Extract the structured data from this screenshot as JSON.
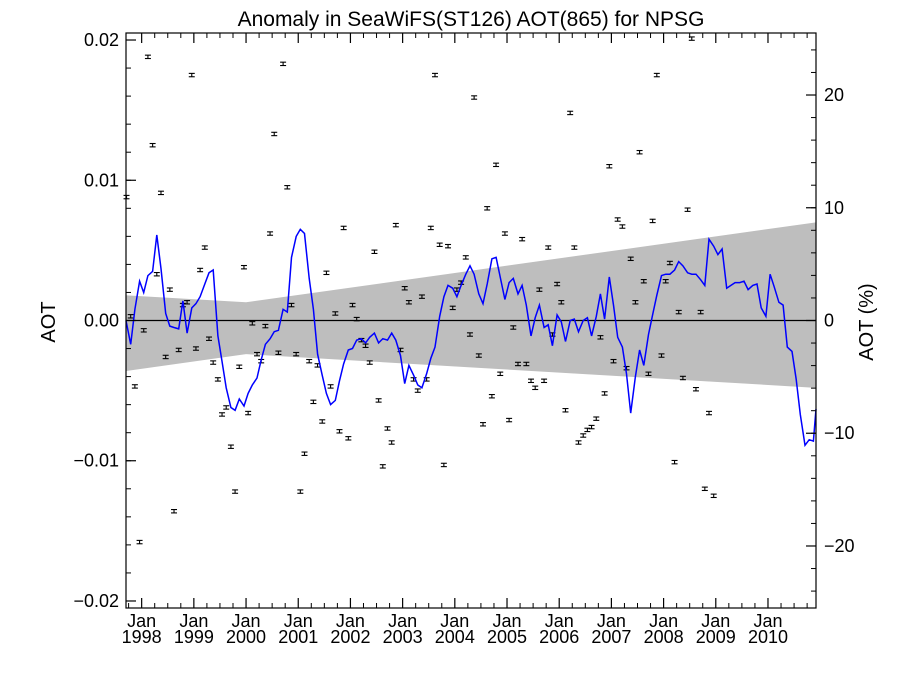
{
  "chart_data": {
    "type": "line",
    "title": "Anomaly in SeaWiFS(ST126) AOT(865) for NPSG",
    "ylabel_left": "AOT",
    "ylabel_right": "AOT (%)",
    "xlim": [
      1997.7,
      2010.92
    ],
    "ylim": [
      -0.0205,
      0.0205
    ],
    "ylim_right": [
      -25.5,
      25.5
    ],
    "x_ticks": [
      {
        "value": 1998,
        "line1": "Jan",
        "line2": "1998"
      },
      {
        "value": 1999,
        "line1": "Jan",
        "line2": "1999"
      },
      {
        "value": 2000,
        "line1": "Jan",
        "line2": "2000"
      },
      {
        "value": 2001,
        "line1": "Jan",
        "line2": "2001"
      },
      {
        "value": 2002,
        "line1": "Jan",
        "line2": "2002"
      },
      {
        "value": 2003,
        "line1": "Jan",
        "line2": "2003"
      },
      {
        "value": 2004,
        "line1": "Jan",
        "line2": "2004"
      },
      {
        "value": 2005,
        "line1": "Jan",
        "line2": "2005"
      },
      {
        "value": 2006,
        "line1": "Jan",
        "line2": "2006"
      },
      {
        "value": 2007,
        "line1": "Jan",
        "line2": "2007"
      },
      {
        "value": 2008,
        "line1": "Jan",
        "line2": "2008"
      },
      {
        "value": 2009,
        "line1": "Jan",
        "line2": "2009"
      },
      {
        "value": 2010,
        "line1": "Jan",
        "line2": "2010"
      }
    ],
    "y_ticks_left": [
      {
        "value": 0.02,
        "label": "0.02"
      },
      {
        "value": 0.01,
        "label": "0.01"
      },
      {
        "value": 0.0,
        "label": "0.00"
      },
      {
        "value": -0.01,
        "label": "−0.01"
      },
      {
        "value": -0.02,
        "label": "−0.02"
      }
    ],
    "y_ticks_right": [
      {
        "value": 20,
        "label": "20"
      },
      {
        "value": 10,
        "label": "10"
      },
      {
        "value": 0,
        "label": "0"
      },
      {
        "value": -10,
        "label": "−10"
      },
      {
        "value": -20,
        "label": "−20"
      }
    ],
    "zero_line": 0,
    "confidence_band": {
      "upper": [
        [
          1997.7,
          0.0018
        ],
        [
          2000.0,
          0.0013
        ],
        [
          2010.92,
          0.007
        ]
      ],
      "lower": [
        [
          1997.7,
          -0.0036
        ],
        [
          2000.0,
          -0.0024
        ],
        [
          2010.92,
          -0.0048
        ]
      ],
      "color": "#bebebe"
    },
    "smoothed_line": {
      "color": "#0000ff",
      "points": [
        [
          1997.7,
          0.0
        ],
        [
          1997.79,
          -0.0017
        ],
        [
          1997.87,
          0.0008
        ],
        [
          1997.96,
          0.0028
        ],
        [
          1998.04,
          0.002
        ],
        [
          1998.12,
          0.0032
        ],
        [
          1998.21,
          0.0035
        ],
        [
          1998.29,
          0.0061
        ],
        [
          1998.37,
          0.0037
        ],
        [
          1998.46,
          0.0005
        ],
        [
          1998.54,
          -0.0004
        ],
        [
          1998.62,
          -0.0005
        ],
        [
          1998.71,
          -0.0006
        ],
        [
          1998.79,
          0.0014
        ],
        [
          1998.87,
          -0.0009
        ],
        [
          1998.96,
          0.0009
        ],
        [
          1999.04,
          0.0012
        ],
        [
          1999.12,
          0.0017
        ],
        [
          1999.21,
          0.0026
        ],
        [
          1999.29,
          0.0034
        ],
        [
          1999.37,
          0.0036
        ],
        [
          1999.46,
          -0.0011
        ],
        [
          1999.54,
          -0.0029
        ],
        [
          1999.62,
          -0.0048
        ],
        [
          1999.71,
          -0.0062
        ],
        [
          1999.79,
          -0.0064
        ],
        [
          1999.87,
          -0.0056
        ],
        [
          1999.96,
          -0.0061
        ],
        [
          2000.04,
          -0.0052
        ],
        [
          2000.12,
          -0.0046
        ],
        [
          2000.21,
          -0.0041
        ],
        [
          2000.29,
          -0.0028
        ],
        [
          2000.37,
          -0.0017
        ],
        [
          2000.46,
          -0.0013
        ],
        [
          2000.54,
          -0.0008
        ],
        [
          2000.62,
          -0.0007
        ],
        [
          2000.71,
          0.0008
        ],
        [
          2000.79,
          0.0006
        ],
        [
          2000.87,
          0.0045
        ],
        [
          2000.96,
          0.006
        ],
        [
          2001.04,
          0.0065
        ],
        [
          2001.12,
          0.0062
        ],
        [
          2001.21,
          0.003
        ],
        [
          2001.29,
          0.0008
        ],
        [
          2001.37,
          -0.0024
        ],
        [
          2001.46,
          -0.0039
        ],
        [
          2001.54,
          -0.0052
        ],
        [
          2001.62,
          -0.006
        ],
        [
          2001.71,
          -0.0057
        ],
        [
          2001.79,
          -0.0043
        ],
        [
          2001.87,
          -0.0031
        ],
        [
          2001.96,
          -0.0021
        ],
        [
          2002.04,
          -0.002
        ],
        [
          2002.12,
          -0.0014
        ],
        [
          2002.21,
          -0.0013
        ],
        [
          2002.29,
          -0.0016
        ],
        [
          2002.37,
          -0.0012
        ],
        [
          2002.46,
          -0.0009
        ],
        [
          2002.54,
          -0.0016
        ],
        [
          2002.62,
          -0.0013
        ],
        [
          2002.71,
          -0.0014
        ],
        [
          2002.79,
          -0.0009
        ],
        [
          2002.87,
          -0.0014
        ],
        [
          2002.96,
          -0.0025
        ],
        [
          2003.04,
          -0.0045
        ],
        [
          2003.12,
          -0.0032
        ],
        [
          2003.21,
          -0.0039
        ],
        [
          2003.29,
          -0.0046
        ],
        [
          2003.37,
          -0.0048
        ],
        [
          2003.46,
          -0.0038
        ],
        [
          2003.54,
          -0.0027
        ],
        [
          2003.62,
          -0.0019
        ],
        [
          2003.71,
          0.0003
        ],
        [
          2003.79,
          0.0017
        ],
        [
          2003.87,
          0.0025
        ],
        [
          2003.96,
          0.0023
        ],
        [
          2004.04,
          0.0017
        ],
        [
          2004.12,
          0.0025
        ],
        [
          2004.21,
          0.0033
        ],
        [
          2004.29,
          0.0039
        ],
        [
          2004.37,
          0.0033
        ],
        [
          2004.46,
          0.0019
        ],
        [
          2004.54,
          0.0012
        ],
        [
          2004.62,
          0.0026
        ],
        [
          2004.71,
          0.0044
        ],
        [
          2004.79,
          0.0045
        ],
        [
          2004.87,
          0.0031
        ],
        [
          2004.96,
          0.0015
        ],
        [
          2005.04,
          0.0027
        ],
        [
          2005.12,
          0.003
        ],
        [
          2005.21,
          0.0019
        ],
        [
          2005.29,
          0.0025
        ],
        [
          2005.37,
          0.0011
        ],
        [
          2005.46,
          -0.0011
        ],
        [
          2005.54,
          0.0002
        ],
        [
          2005.62,
          0.0011
        ],
        [
          2005.71,
          -0.0005
        ],
        [
          2005.79,
          -0.0003
        ],
        [
          2005.87,
          -0.0018
        ],
        [
          2005.96,
          0.0004
        ],
        [
          2006.04,
          -0.0001
        ],
        [
          2006.12,
          -0.0015
        ],
        [
          2006.21,
          0.0
        ],
        [
          2006.29,
          0.0001
        ],
        [
          2006.37,
          -0.0008
        ],
        [
          2006.46,
          0.0
        ],
        [
          2006.54,
          0.0002
        ],
        [
          2006.62,
          -0.0011
        ],
        [
          2006.71,
          0.0003
        ],
        [
          2006.79,
          0.0019
        ],
        [
          2006.87,
          0.0001
        ],
        [
          2006.96,
          0.0031
        ],
        [
          2007.04,
          0.0011
        ],
        [
          2007.12,
          -0.0012
        ],
        [
          2007.21,
          -0.0019
        ],
        [
          2007.29,
          -0.0038
        ],
        [
          2007.37,
          -0.0066
        ],
        [
          2007.46,
          -0.004
        ],
        [
          2007.54,
          -0.0021
        ],
        [
          2007.62,
          -0.0032
        ],
        [
          2007.71,
          -0.001
        ],
        [
          2007.79,
          0.0004
        ],
        [
          2007.87,
          0.0018
        ],
        [
          2007.96,
          0.0032
        ],
        [
          2008.04,
          0.0033
        ],
        [
          2008.12,
          0.0033
        ],
        [
          2008.21,
          0.0036
        ],
        [
          2008.29,
          0.0042
        ],
        [
          2008.37,
          0.0039
        ],
        [
          2008.46,
          0.0034
        ],
        [
          2008.54,
          0.0033
        ],
        [
          2008.62,
          0.0033
        ],
        [
          2008.71,
          0.0029
        ],
        [
          2008.79,
          0.0025
        ],
        [
          2008.87,
          0.0058
        ],
        [
          2008.96,
          0.0053
        ],
        [
          2009.04,
          0.0047
        ],
        [
          2009.12,
          0.0051
        ],
        [
          2009.21,
          0.0023
        ],
        [
          2009.29,
          0.0025
        ],
        [
          2009.37,
          0.0027
        ],
        [
          2009.46,
          0.0027
        ],
        [
          2009.54,
          0.0028
        ],
        [
          2009.62,
          0.0022
        ],
        [
          2009.71,
          0.0025
        ],
        [
          2009.79,
          0.0026
        ],
        [
          2009.87,
          0.0009
        ],
        [
          2009.96,
          0.0003
        ],
        [
          2010.04,
          0.0033
        ],
        [
          2010.12,
          0.0024
        ],
        [
          2010.21,
          0.0013
        ],
        [
          2010.29,
          0.0011
        ],
        [
          2010.37,
          -0.0019
        ],
        [
          2010.46,
          -0.0022
        ],
        [
          2010.54,
          -0.0042
        ],
        [
          2010.62,
          -0.0067
        ],
        [
          2010.71,
          -0.0089
        ],
        [
          2010.79,
          -0.0085
        ],
        [
          2010.87,
          -0.0086
        ],
        [
          2010.92,
          -0.0063
        ]
      ]
    },
    "monthly_points": {
      "color": "#000000",
      "error": 0.00012,
      "points": [
        [
          1997.71,
          0.0088
        ],
        [
          1997.79,
          0.0003
        ],
        [
          1997.87,
          -0.0047
        ],
        [
          1997.96,
          -0.0158
        ],
        [
          1998.04,
          -0.0007
        ],
        [
          1998.12,
          0.0188
        ],
        [
          1998.21,
          0.0125
        ],
        [
          1998.29,
          0.0033
        ],
        [
          1998.37,
          0.0091
        ],
        [
          1998.46,
          -0.0026
        ],
        [
          1998.54,
          0.0022
        ],
        [
          1998.62,
          -0.0136
        ],
        [
          1998.71,
          -0.0021
        ],
        [
          1998.79,
          0.0011
        ],
        [
          1998.87,
          0.0013
        ],
        [
          1998.96,
          0.0175
        ],
        [
          1999.04,
          -0.002
        ],
        [
          1999.12,
          0.0036
        ],
        [
          1999.21,
          0.0052
        ],
        [
          1999.29,
          -0.0013
        ],
        [
          1999.37,
          -0.003
        ],
        [
          1999.46,
          -0.0042
        ],
        [
          1999.54,
          -0.0067
        ],
        [
          1999.62,
          -0.0062
        ],
        [
          1999.71,
          -0.009
        ],
        [
          1999.79,
          -0.0122
        ],
        [
          1999.87,
          -0.0033
        ],
        [
          1999.96,
          0.0038
        ],
        [
          2000.04,
          -0.0066
        ],
        [
          2000.12,
          -0.0002
        ],
        [
          2000.21,
          -0.0024
        ],
        [
          2000.29,
          -0.0029
        ],
        [
          2000.37,
          -0.0004
        ],
        [
          2000.46,
          0.0062
        ],
        [
          2000.54,
          0.0133
        ],
        [
          2000.62,
          -0.0023
        ],
        [
          2000.71,
          0.0183
        ],
        [
          2000.79,
          0.0095
        ],
        [
          2000.87,
          0.0011
        ],
        [
          2000.96,
          -0.0024
        ],
        [
          2001.04,
          -0.0122
        ],
        [
          2001.12,
          -0.0095
        ],
        [
          2001.21,
          -0.0029
        ],
        [
          2001.29,
          -0.0058
        ],
        [
          2001.37,
          -0.0032
        ],
        [
          2001.46,
          -0.0072
        ],
        [
          2001.54,
          0.0034
        ],
        [
          2001.62,
          -0.0047
        ],
        [
          2001.71,
          0.0005
        ],
        [
          2001.79,
          -0.0079
        ],
        [
          2001.87,
          0.0066
        ],
        [
          2001.96,
          -0.0084
        ],
        [
          2002.04,
          0.0011
        ],
        [
          2002.12,
          0.0001
        ],
        [
          2002.21,
          -0.0014
        ],
        [
          2002.29,
          -0.0018
        ],
        [
          2002.37,
          -0.003
        ],
        [
          2002.46,
          0.0049
        ],
        [
          2002.54,
          -0.0057
        ],
        [
          2002.62,
          -0.0104
        ],
        [
          2002.71,
          -0.0077
        ],
        [
          2002.79,
          -0.0087
        ],
        [
          2002.87,
          0.0068
        ],
        [
          2002.96,
          -0.0021
        ],
        [
          2003.04,
          0.0023
        ],
        [
          2003.12,
          0.0013
        ],
        [
          2003.21,
          -0.0042
        ],
        [
          2003.29,
          -0.005
        ],
        [
          2003.37,
          0.0017
        ],
        [
          2003.46,
          -0.0042
        ],
        [
          2003.54,
          0.0066
        ],
        [
          2003.62,
          0.0175
        ],
        [
          2003.71,
          0.0054
        ],
        [
          2003.79,
          -0.0103
        ],
        [
          2003.87,
          0.0053
        ],
        [
          2003.96,
          0.0009
        ],
        [
          2004.04,
          0.0022
        ],
        [
          2004.12,
          0.0027
        ],
        [
          2004.21,
          0.0045
        ],
        [
          2004.29,
          -0.001
        ],
        [
          2004.37,
          0.0159
        ],
        [
          2004.46,
          -0.0025
        ],
        [
          2004.54,
          -0.0074
        ],
        [
          2004.62,
          0.008
        ],
        [
          2004.71,
          -0.0054
        ],
        [
          2004.79,
          0.0111
        ],
        [
          2004.87,
          -0.0038
        ],
        [
          2004.96,
          0.0062
        ],
        [
          2005.04,
          -0.0071
        ],
        [
          2005.12,
          -0.0005
        ],
        [
          2005.21,
          -0.0031
        ],
        [
          2005.29,
          0.0058
        ],
        [
          2005.37,
          -0.0031
        ],
        [
          2005.46,
          -0.0043
        ],
        [
          2005.54,
          -0.0048
        ],
        [
          2005.62,
          0.0022
        ],
        [
          2005.71,
          -0.0043
        ],
        [
          2005.79,
          0.0052
        ],
        [
          2005.87,
          -0.001
        ],
        [
          2005.96,
          0.0026
        ],
        [
          2006.04,
          0.0013
        ],
        [
          2006.12,
          -0.0064
        ],
        [
          2006.21,
          0.0148
        ],
        [
          2006.29,
          0.0052
        ],
        [
          2006.37,
          -0.0087
        ],
        [
          2006.46,
          -0.0082
        ],
        [
          2006.54,
          -0.0078
        ],
        [
          2006.62,
          -0.0076
        ],
        [
          2006.71,
          -0.007
        ],
        [
          2006.79,
          -0.0012
        ],
        [
          2006.87,
          -0.0052
        ],
        [
          2006.96,
          0.011
        ],
        [
          2007.04,
          -0.0029
        ],
        [
          2007.12,
          0.0072
        ],
        [
          2007.21,
          0.0067
        ],
        [
          2007.29,
          -0.0034
        ],
        [
          2007.37,
          0.0044
        ],
        [
          2007.46,
          0.0013
        ],
        [
          2007.54,
          0.012
        ],
        [
          2007.62,
          0.0028
        ],
        [
          2007.71,
          -0.0038
        ],
        [
          2007.79,
          0.0071
        ],
        [
          2007.87,
          0.0175
        ],
        [
          2007.96,
          -0.0025
        ],
        [
          2008.04,
          0.0028
        ],
        [
          2008.12,
          0.0041
        ],
        [
          2008.21,
          -0.0101
        ],
        [
          2008.29,
          0.0006
        ],
        [
          2008.37,
          -0.0041
        ],
        [
          2008.46,
          0.0079
        ],
        [
          2008.54,
          0.0201
        ],
        [
          2008.62,
          -0.0049
        ],
        [
          2008.71,
          0.0006
        ],
        [
          2008.79,
          -0.012
        ],
        [
          2008.87,
          -0.0066
        ],
        [
          2008.96,
          -0.0125
        ]
      ]
    }
  }
}
